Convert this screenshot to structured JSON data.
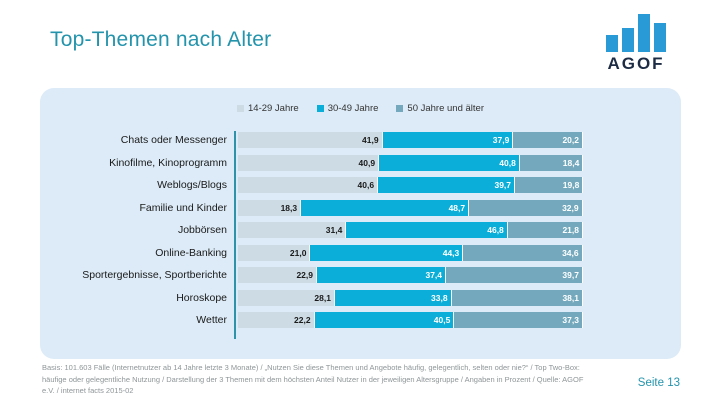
{
  "slide": {
    "title": "Top-Themen nach Alter",
    "page_label": "Seite 13",
    "footnote": "Basis: 101.603 Fälle (Internetnutzer ab 14 Jahre letzte 3 Monate) / „Nutzen Sie diese Themen und Angebote häufig, gelegentlich, selten oder nie?“ / Top Two-Box: häufige oder gelegentliche Nutzung / Darstellung der 3 Themen mit dem höchsten Anteil Nutzer in der jeweiligen Altersgruppe / Angaben in Prozent / Quelle: AGOF e.V. / internet facts 2015-02"
  },
  "logo": {
    "text": "AGOF",
    "bar_color": "#2a9ad6",
    "text_color": "#1d2c44"
  },
  "colors": {
    "accent_teal": "#2494ac",
    "panel_background": "#dcebf7",
    "axis_line": "#2e93a8"
  },
  "chart_data": {
    "type": "bar",
    "orientation": "horizontal",
    "stacked": true,
    "unit": "percent",
    "xlim": [
      0,
      100
    ],
    "grid": false,
    "legend_position": "top-center",
    "value_decimal_separator": ",",
    "categories": [
      "Chats oder Messenger",
      "Kinofilme, Kinoprogramm",
      "Weblogs/Blogs",
      "Familie und Kinder",
      "Jobbörsen",
      "Online-Banking",
      "Sportergebnisse, Sportberichte",
      "Horoskope",
      "Wetter"
    ],
    "series": [
      {
        "name": "14-29 Jahre",
        "color": "#ccdbe4",
        "text_color": "#1a1a1a",
        "values": [
          41.9,
          40.9,
          40.6,
          18.3,
          31.4,
          21.0,
          22.9,
          28.1,
          22.2
        ]
      },
      {
        "name": "30-49 Jahre",
        "color": "#0baed8",
        "text_color": "#ffffff",
        "values": [
          37.9,
          40.8,
          39.7,
          48.7,
          46.8,
          44.3,
          37.4,
          33.8,
          40.5
        ]
      },
      {
        "name": "50 Jahre und älter",
        "color": "#74a9bd",
        "text_color": "#ffffff",
        "values": [
          20.2,
          18.4,
          19.8,
          32.9,
          21.8,
          34.6,
          39.7,
          38.1,
          37.3
        ]
      }
    ]
  }
}
